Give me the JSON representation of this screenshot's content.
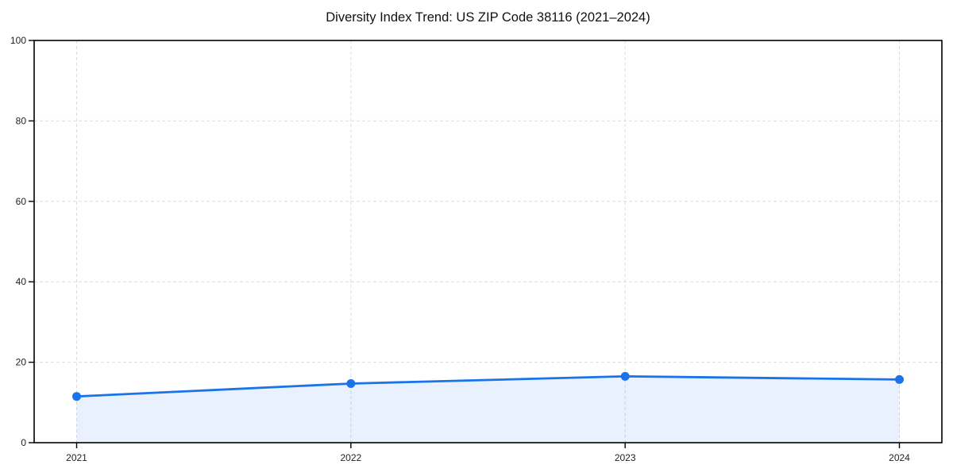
{
  "chart_data": {
    "type": "area",
    "title": "Diversity Index Trend: US ZIP Code 38116 (2021–2024)",
    "categories": [
      "2021",
      "2022",
      "2023",
      "2024"
    ],
    "values": [
      11.5,
      14.7,
      16.5,
      15.7
    ],
    "series_name": "Diversity Index",
    "xlabel": "",
    "ylabel": "",
    "ylim": [
      0,
      100
    ],
    "yticks": [
      0,
      20,
      40,
      60,
      80,
      100
    ],
    "grid": "dashed-both-axes",
    "legend": "none",
    "colors": {
      "line": "#1a73e8",
      "marker": "#1a73e8",
      "area_fill": "rgba(26,115,232,0.10)",
      "grid": "#dcdcdc",
      "spine": "#000000",
      "tick_label": "#222222",
      "title": "#111111",
      "background": "#ffffff"
    }
  }
}
